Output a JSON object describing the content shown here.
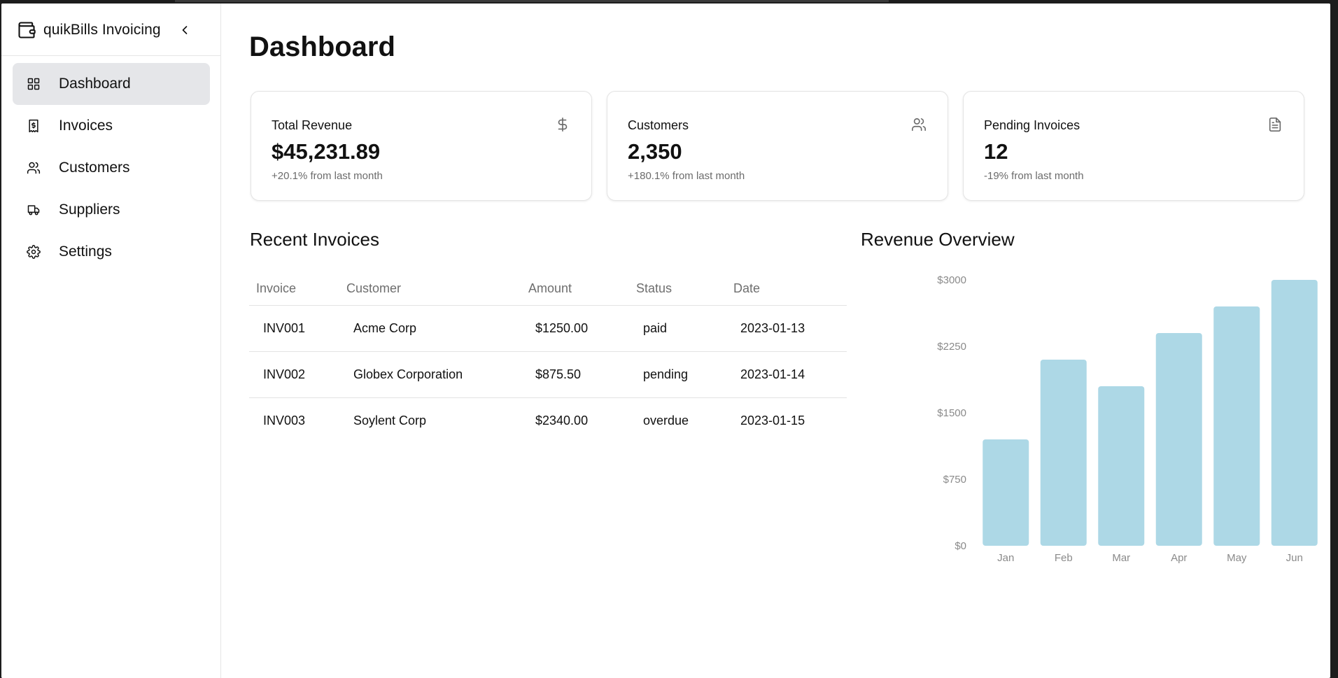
{
  "app": {
    "title": "quikBills Invoicing"
  },
  "sidebar": {
    "items": [
      {
        "label": "Dashboard",
        "icon": "grid-icon",
        "active": true
      },
      {
        "label": "Invoices",
        "icon": "receipt-dollar-icon",
        "active": false
      },
      {
        "label": "Customers",
        "icon": "users-icon",
        "active": false
      },
      {
        "label": "Suppliers",
        "icon": "truck-icon",
        "active": false
      },
      {
        "label": "Settings",
        "icon": "gear-icon",
        "active": false
      }
    ]
  },
  "main": {
    "title": "Dashboard",
    "cards": [
      {
        "label": "Total Revenue",
        "value": "$45,231.89",
        "sub": "+20.1% from last month",
        "icon": "dollar-icon"
      },
      {
        "label": "Customers",
        "value": "2,350",
        "sub": "+180.1% from last month",
        "icon": "users-icon"
      },
      {
        "label": "Pending Invoices",
        "value": "12",
        "sub": "-19% from last month",
        "icon": "file-text-icon"
      }
    ],
    "recent_invoices": {
      "title": "Recent Invoices",
      "columns": [
        "Invoice",
        "Customer",
        "Amount",
        "Status",
        "Date"
      ],
      "rows": [
        [
          "INV001",
          "Acme Corp",
          "$1250.00",
          "paid",
          "2023-01-13"
        ],
        [
          "INV002",
          "Globex Corporation",
          "$875.50",
          "pending",
          "2023-01-14"
        ],
        [
          "INV003",
          "Soylent Corp",
          "$2340.00",
          "overdue",
          "2023-01-15"
        ]
      ]
    },
    "revenue": {
      "title": "Revenue Overview"
    }
  },
  "colors": {
    "bar": "#add8e6",
    "active_nav": "#e5e6e9"
  },
  "chart_data": {
    "type": "bar",
    "title": "Revenue Overview",
    "categories": [
      "Jan",
      "Feb",
      "Mar",
      "Apr",
      "May",
      "Jun"
    ],
    "values": [
      1200,
      2100,
      1800,
      2400,
      2700,
      3000
    ],
    "ylim": [
      0,
      3000
    ],
    "yticks": [
      "$0",
      "$750",
      "$1500",
      "$2250",
      "$3000"
    ],
    "ytick_values": [
      0,
      750,
      1500,
      2250,
      3000
    ],
    "grid": false,
    "legend": "none"
  }
}
